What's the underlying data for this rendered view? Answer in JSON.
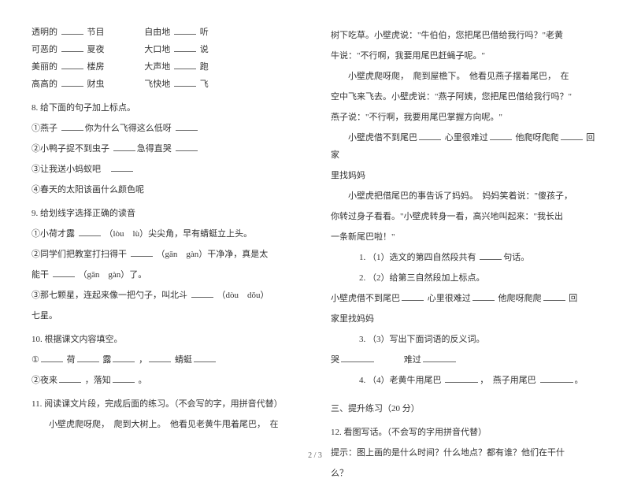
{
  "left": {
    "pairs": [
      {
        "a": "透明的",
        "b": "节目",
        "c": "自由地",
        "d": "听"
      },
      {
        "a": "可恶的",
        "b": "夏夜",
        "c": "大口地",
        "d": "说"
      },
      {
        "a": "美丽的",
        "b": "楼房",
        "c": "大声地",
        "d": "跑"
      },
      {
        "a": "高高的",
        "b": "财虫",
        "c": "飞快地",
        "d": "飞"
      }
    ],
    "q8": "8.  给下面的句子加上标点。",
    "q8_1": "①燕子",
    "q8_1b": "你为什么飞得这么低呀",
    "q8_2": "②小鸭子捉不到虫子",
    "q8_2b": "急得直哭",
    "q8_3": "③让我送小蚂蚁吧",
    "q8_4": "④春天的太阳该画什么颜色呢",
    "q9": "9.  给划线字选择正确的读音",
    "q9_1a": "①小荷才露",
    "q9_1b": "（lòu　lù）尖尖角，早有蜻蜓立上头。",
    "q9_2a": "②同学们把教室打扫得干",
    "q9_2b": "（gān　gàn）干净净，真是太",
    "q9_2c": "能干",
    "q9_2d": "（gān　gàn）了。",
    "q9_3a": "③那七颗星，连起来像一把勺子，叫北斗",
    "q9_3b": "（dòu　dǒu）",
    "q9_3c": "七星。",
    "q10": "10.  根据课文内容填空。",
    "q10_1a": "①",
    "q10_1b": "荷",
    "q10_1c": "露",
    "q10_1d": "，",
    "q10_1e": "蜻蜓",
    "q10_2a": "②夜来",
    "q10_2b": "，落知",
    "q10_2c": "。",
    "q11": "11.  阅读课文片段，完成后面的练习。（不会写的字，用拼音代替）",
    "p1": "小壁虎爬呀爬，　爬到大树上。　他看见老黄牛甩着尾巴，　在",
    "p2a": "树下吃草。小壁虎说：\"牛伯伯，您把尾巴借给我行吗？\"老黄",
    "p2b": "牛说：\"不行啊，我要用尾巴赶蝇子呢。\"",
    "p3a": "小壁虎爬呀爬，　爬到屋檐下。　他看见燕子摆着尾巴，　在",
    "p3b": "空中飞来飞去。小壁虎说：\"燕子阿姨，您把尾巴借给我行吗？\"",
    "p3c": "燕子说：\"不行啊，我要用尾巴掌握方向呢。\""
  },
  "right": {
    "p4a": "小壁虎借不到尾巴",
    "p4b": "心里很难过",
    "p4c": "他爬呀爬爬",
    "p4d": "回家",
    "p4e": "里找妈妈",
    "p5a": "小壁虎把借尾巴的事告诉了妈妈。　妈妈笑着说：\"傻孩子，",
    "p5b": "你转过身子看看。\"小壁虎转身一看，高兴地叫起来：\"我长出",
    "p5c": "一条新尾巴啦！\"",
    "sub1": "1. （1）选文的第四自然段共有",
    "sub1b": "句话。",
    "sub2": "2. （2）给第三自然段加上标点。",
    "sub2a": "小壁虎借不到尾巴",
    "sub2b": "心里很难过",
    "sub2c": "他爬呀爬爬",
    "sub2d": "回",
    "sub2e": "家里找妈妈",
    "sub3": "3. （3）写出下面词语的反义词。",
    "sub3a": "哭",
    "sub3b": "难过",
    "sub4": "4. （4）老黄牛用尾巴",
    "sub4b": "，　燕子用尾巴",
    "sub4c": "。",
    "section3": "三、提升练习（20 分）",
    "q12": "12.  看图写话。（不会写的字用拼音代替）",
    "q12b": "提示：图上画的是什么时间？什么地点？都有谁？他们在干什",
    "q12c": "么？"
  },
  "footer": "2 / 3"
}
